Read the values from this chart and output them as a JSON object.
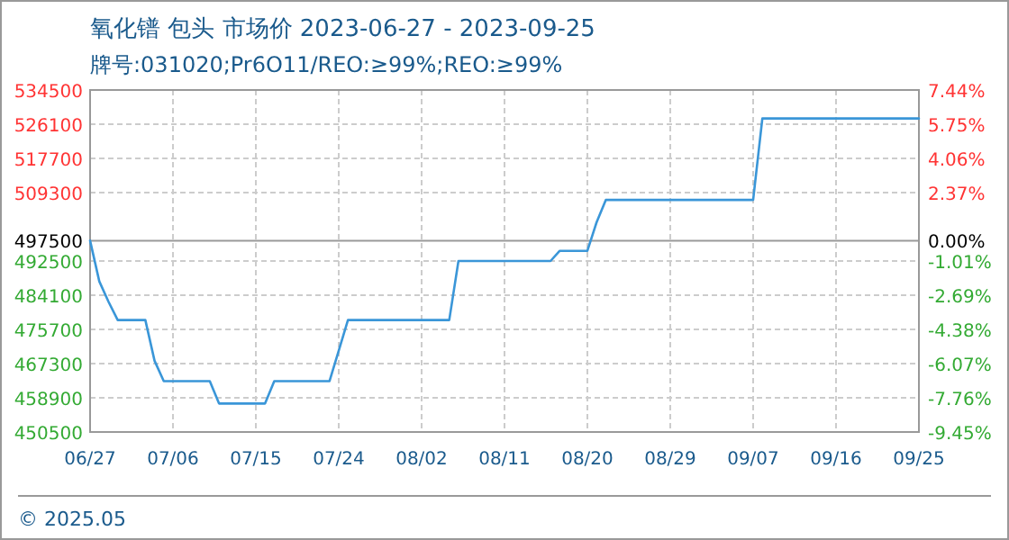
{
  "chart_data": {
    "type": "line",
    "title": "氧化镨 包头 市场价 2023-06-27 - 2023-09-25",
    "subtitle": "牌号:031020;Pr6O11/REO:≥99%;REO:≥99%",
    "annotations": [
      "© 2025.05"
    ],
    "x": [
      "--06-27",
      "--06-28",
      "--06-29",
      "--06-30",
      "--07-03",
      "--07-04",
      "--07-05",
      "--07-10",
      "--07-11",
      "--07-16",
      "--07-17",
      "--07-23",
      "--07-24",
      "--07-25",
      "--08-05",
      "--08-06",
      "--08-16",
      "--08-17",
      "--08-20",
      "--08-21",
      "--08-22",
      "--09-07",
      "--09-08",
      "--09-25"
    ],
    "series": [
      {
        "color": "#3a96d8",
        "values": [
          497500,
          487500,
          482500,
          478000,
          478000,
          468000,
          463000,
          463000,
          457500,
          457500,
          463000,
          463000,
          470500,
          478000,
          478000,
          492500,
          492500,
          495000,
          495000,
          502000,
          507500,
          507500,
          527500,
          527500
        ]
      }
    ],
    "xlim": [
      "--06-27",
      "--09-25"
    ],
    "xticks": [
      {
        "value": "--06-27",
        "label": "06/27"
      },
      {
        "value": "--07-06",
        "label": "07/06"
      },
      {
        "value": "--07-15",
        "label": "07/15"
      },
      {
        "value": "--07-24",
        "label": "07/24"
      },
      {
        "value": "--08-02",
        "label": "08/02"
      },
      {
        "value": "--08-11",
        "label": "08/11"
      },
      {
        "value": "--08-20",
        "label": "08/20"
      },
      {
        "value": "--08-29",
        "label": "08/29"
      },
      {
        "value": "--09-07",
        "label": "09/07"
      },
      {
        "value": "--09-16",
        "label": "09/16"
      },
      {
        "value": "--09-25",
        "label": "09/25"
      }
    ],
    "ylim": [
      450500,
      534500
    ],
    "yticks": [
      450500,
      458900,
      467300,
      475700,
      484100,
      492500,
      497500,
      509300,
      517700,
      526100,
      534500
    ],
    "y2lim": [
      -9.45,
      7.44
    ],
    "y2ticks": [
      {
        "value": -9.45,
        "label": "-9.45%"
      },
      {
        "value": -7.76,
        "label": "-7.76%"
      },
      {
        "value": -6.07,
        "label": "-6.07%"
      },
      {
        "value": -4.38,
        "label": "-4.38%"
      },
      {
        "value": -2.69,
        "label": "-2.69%"
      },
      {
        "value": -1.01,
        "label": "-1.01%"
      },
      {
        "value": 0,
        "label": "0.00%"
      },
      {
        "value": 2.37,
        "label": "2.37%"
      },
      {
        "value": 4.06,
        "label": "4.06%"
      },
      {
        "value": 5.75,
        "label": "5.75%"
      },
      {
        "value": 7.44,
        "label": "7.44%"
      }
    ],
    "ref_lines": [
      {
        "axis": "y",
        "value": 497500,
        "color": "#999999",
        "line_style": "solid"
      }
    ],
    "grid": true,
    "marker": "none",
    "line_style": "solid"
  }
}
